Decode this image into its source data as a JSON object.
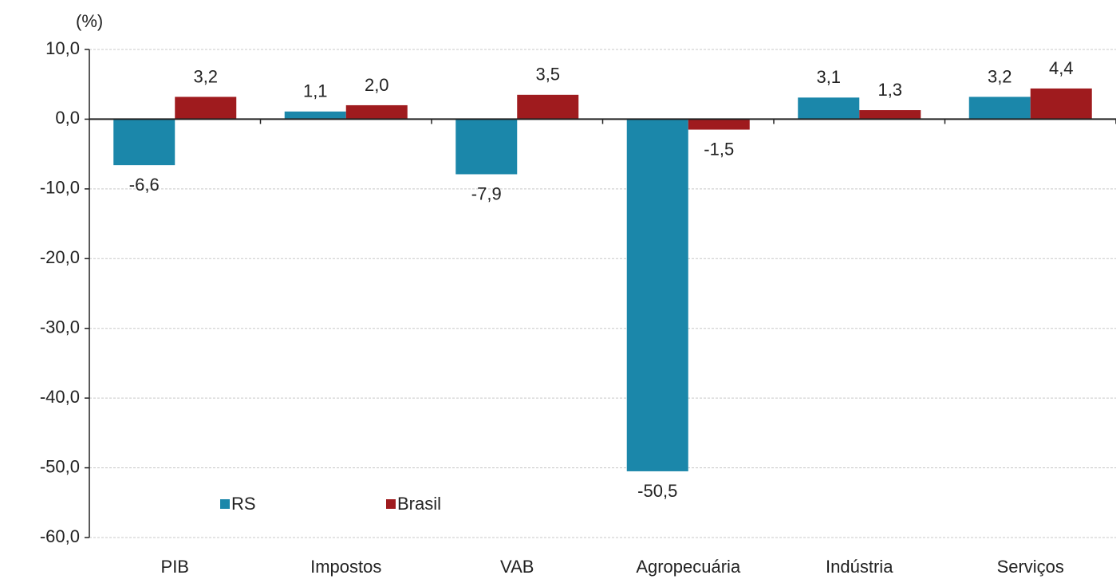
{
  "chart_data": {
    "type": "bar",
    "y_axis_label": "(%)",
    "categories": [
      "PIB",
      "Impostos",
      "VAB",
      "Agropecuária",
      "Indústria",
      "Serviços"
    ],
    "series": [
      {
        "name": "RS",
        "color": "#1b87aa",
        "values": [
          -6.6,
          1.1,
          -7.9,
          -50.5,
          3.1,
          3.2
        ],
        "value_labels": [
          "-6,6",
          "1,1",
          "-7,9",
          "-50,5",
          "3,1",
          "3,2"
        ]
      },
      {
        "name": "Brasil",
        "color": "#9f1b1e",
        "values": [
          3.2,
          2.0,
          3.5,
          -1.5,
          1.3,
          4.4
        ],
        "value_labels": [
          "3,2",
          "2,0",
          "3,5",
          "-1,5",
          "1,3",
          "4,4"
        ]
      }
    ],
    "ylim": [
      -60,
      10
    ],
    "yticks": [
      {
        "value": -60,
        "label": "-60,0"
      },
      {
        "value": -50,
        "label": "-50,0"
      },
      {
        "value": -40,
        "label": "-40,0"
      },
      {
        "value": -30,
        "label": "-30,0"
      },
      {
        "value": -20,
        "label": "-20,0"
      },
      {
        "value": -10,
        "label": "-10,0"
      },
      {
        "value": 0,
        "label": "0,0"
      },
      {
        "value": 10,
        "label": "10,0"
      }
    ],
    "grid": true,
    "legend": "lower left"
  }
}
